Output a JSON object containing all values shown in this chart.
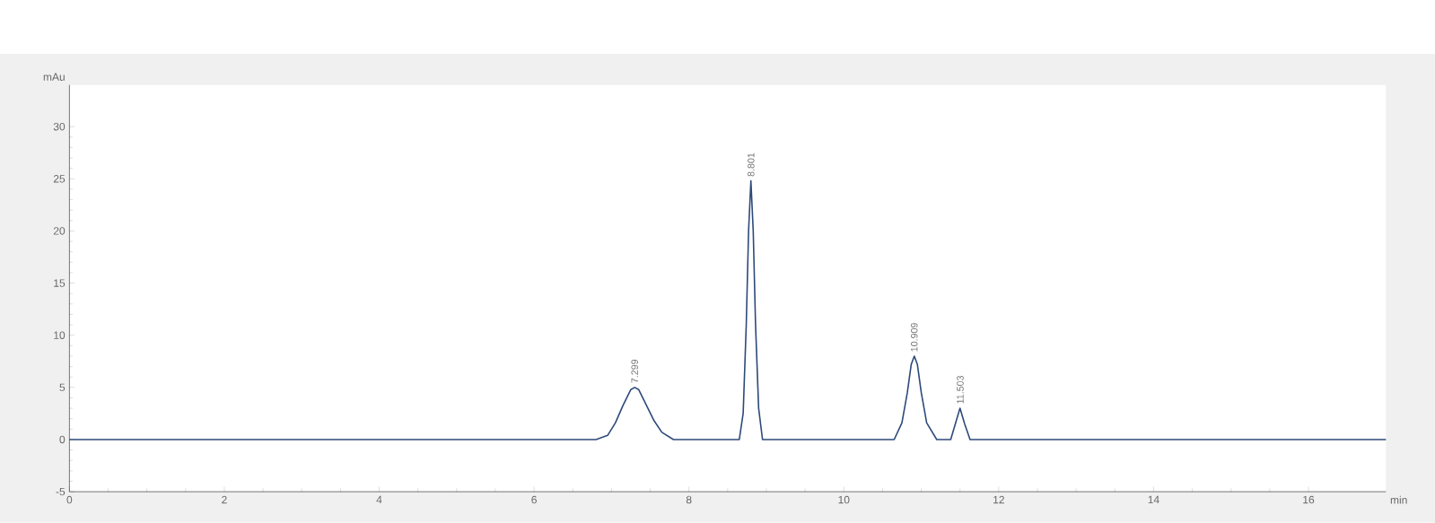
{
  "chart_data": {
    "type": "line",
    "xlabel": "min",
    "ylabel": "mAu",
    "x": [
      0,
      6.8,
      6.95,
      7.05,
      7.15,
      7.25,
      7.3,
      7.35,
      7.45,
      7.55,
      7.65,
      7.8,
      8.65,
      8.7,
      8.74,
      8.77,
      8.8,
      8.83,
      8.86,
      8.9,
      8.95,
      10.65,
      10.75,
      10.82,
      10.87,
      10.91,
      10.95,
      11.0,
      11.07,
      11.2,
      11.38,
      11.44,
      11.5,
      11.56,
      11.63,
      17
    ],
    "series": [
      {
        "color": "#2e4a7a",
        "values": [
          0,
          0,
          0.4,
          1.6,
          3.3,
          4.8,
          5.0,
          4.8,
          3.3,
          1.8,
          0.7,
          0,
          0,
          2.5,
          11,
          20,
          24.8,
          20,
          11,
          3,
          0,
          0,
          1.6,
          4.5,
          7.2,
          8.0,
          7.2,
          4.5,
          1.6,
          0,
          0,
          1.5,
          3.0,
          1.5,
          0,
          0
        ]
      }
    ],
    "xlim": [
      0,
      17
    ],
    "ylim": [
      -5,
      34
    ],
    "xticks": [
      0,
      2,
      4,
      6,
      8,
      10,
      12,
      14,
      16
    ],
    "yticks": [
      -5,
      0,
      5,
      10,
      15,
      20,
      25,
      30
    ],
    "annotations": [
      {
        "text": "7.299",
        "x": 7.299,
        "y": 5.0
      },
      {
        "text": "8.801",
        "x": 8.801,
        "y": 24.8
      },
      {
        "text": "10.909",
        "x": 10.909,
        "y": 8.0
      },
      {
        "text": "11.503",
        "x": 11.503,
        "y": 3.0
      }
    ],
    "grid": false,
    "marker": "none",
    "line_style": "solid"
  }
}
